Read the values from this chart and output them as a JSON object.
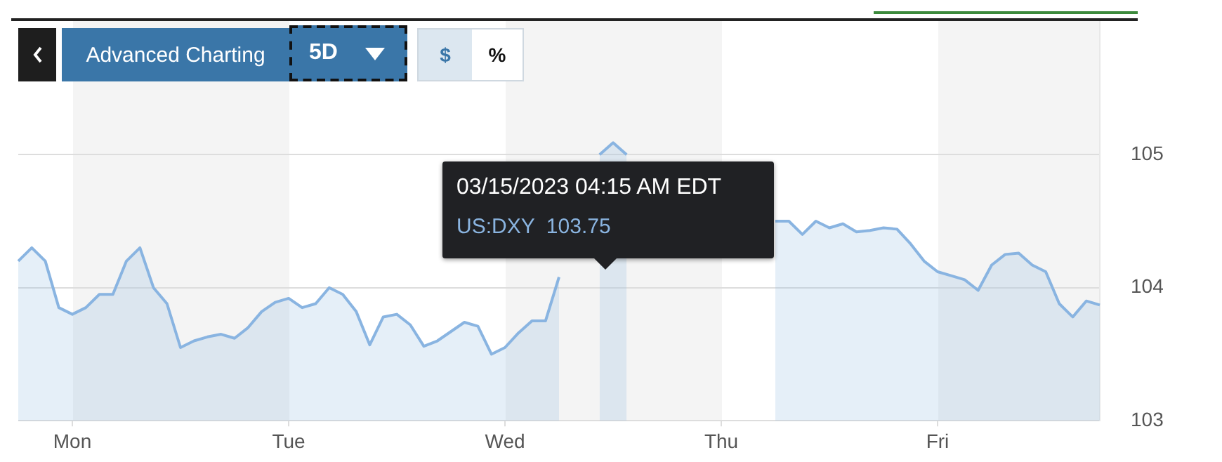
{
  "chart_data": {
    "type": "area",
    "categories": [
      null,
      null,
      null,
      null,
      "Mon",
      null,
      null,
      null,
      null,
      null,
      null,
      null,
      null,
      null,
      null,
      null,
      null,
      null,
      null,
      null,
      "Tue",
      null,
      null,
      null,
      null,
      null,
      null,
      null,
      null,
      null,
      null,
      null,
      null,
      null,
      null,
      null,
      "Wed",
      null,
      null,
      null,
      null,
      null,
      null,
      null,
      null,
      null,
      null,
      null,
      null,
      null,
      null,
      null,
      "Thu",
      null,
      null,
      null,
      null,
      null,
      null,
      null,
      null,
      null,
      null,
      null,
      null,
      null,
      null,
      null,
      "Fri",
      null,
      null,
      null,
      null,
      null,
      null,
      null,
      null,
      null,
      null,
      null,
      null
    ],
    "series": [
      {
        "color": "#89b4e1",
        "values": [
          104.2,
          104.3,
          104.2,
          103.85,
          103.8,
          103.85,
          103.95,
          103.95,
          104.2,
          104.3,
          104.0,
          103.88,
          103.55,
          103.6,
          103.63,
          103.65,
          103.62,
          103.7,
          103.82,
          103.89,
          103.92,
          103.85,
          103.88,
          104.0,
          103.95,
          103.82,
          103.57,
          103.78,
          103.8,
          103.72,
          103.56,
          103.6,
          103.67,
          103.74,
          103.71,
          103.5,
          103.55,
          103.66,
          103.75,
          103.75,
          104.08,
          null,
          null,
          105.0,
          105.09,
          105.0,
          null,
          null,
          null,
          null,
          null,
          null,
          null,
          null,
          null,
          null,
          104.5,
          104.5,
          104.4,
          104.5,
          104.45,
          104.48,
          104.42,
          104.43,
          104.45,
          104.44,
          104.33,
          104.2,
          104.12,
          104.09,
          104.06,
          103.98,
          104.17,
          104.25,
          104.26,
          104.17,
          104.12,
          103.88,
          103.78,
          103.9,
          103.87
        ]
      }
    ],
    "ylim": [
      103,
      106
    ],
    "yticks": [
      103,
      104,
      105
    ],
    "grid": "y",
    "legend": false,
    "marker": "none",
    "annotations": [
      "Advanced Charting",
      "5D",
      "$",
      "%",
      "03/15/2023 04:15 AM EDT",
      "US:DXY  103.75"
    ]
  }
}
